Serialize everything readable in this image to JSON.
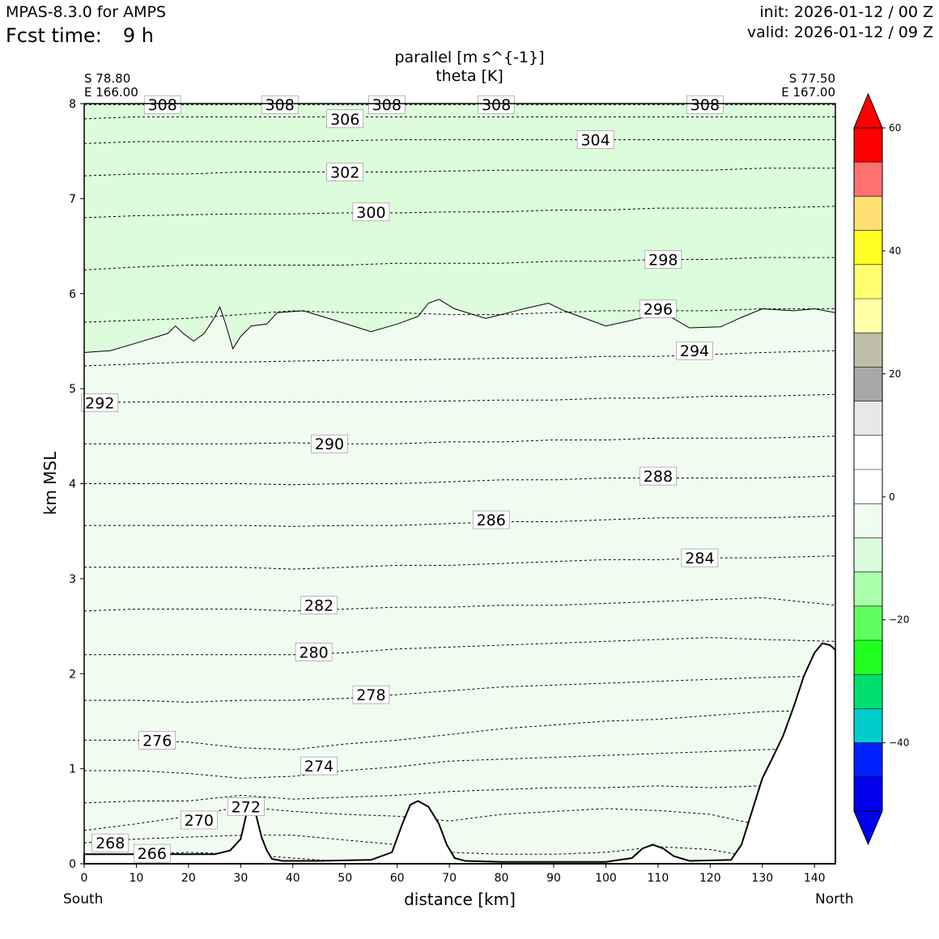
{
  "header": {
    "model": "MPAS-8.3.0 for AMPS",
    "fcst_label": "Fcst time:",
    "fcst_value": "9 h",
    "init": "init: 2026-01-12 / 00 Z",
    "valid": "valid: 2026-01-12 / 09 Z"
  },
  "plot": {
    "title_line1": "parallel [m s^{-1}]",
    "title_line2": "theta [K]",
    "left_lat": "S 78.80",
    "left_lon": "E 166.00",
    "right_lat": "S 77.50",
    "right_lon": "E 167.00",
    "south": "South",
    "north": "North"
  },
  "chart_data": {
    "type": "contour",
    "title": "parallel [m s^{-1}] / theta [K]",
    "xlabel": "distance [km]",
    "ylabel": "km MSL",
    "xlim": [
      0,
      144
    ],
    "ylim": [
      0,
      8
    ],
    "x_ticks": [
      0,
      10,
      20,
      30,
      40,
      50,
      60,
      70,
      80,
      90,
      100,
      110,
      120,
      130,
      140
    ],
    "y_ticks": [
      0,
      1,
      2,
      3,
      4,
      5,
      6,
      7,
      8
    ],
    "fill_field": {
      "name": "parallel wind",
      "units": "m s^{-1}",
      "boundary_between_shades_km": [
        [
          0,
          5.38
        ],
        [
          5,
          5.4
        ],
        [
          10,
          5.48
        ],
        [
          16,
          5.58
        ],
        [
          17.5,
          5.66
        ],
        [
          19,
          5.58
        ],
        [
          21,
          5.5
        ],
        [
          23,
          5.58
        ],
        [
          25,
          5.75
        ],
        [
          26,
          5.86
        ],
        [
          27,
          5.7
        ],
        [
          28.5,
          5.42
        ],
        [
          30,
          5.55
        ],
        [
          32,
          5.66
        ],
        [
          35,
          5.68
        ],
        [
          37,
          5.8
        ],
        [
          42,
          5.82
        ],
        [
          48,
          5.72
        ],
        [
          55,
          5.6
        ],
        [
          60,
          5.68
        ],
        [
          64,
          5.76
        ],
        [
          66,
          5.9
        ],
        [
          68,
          5.94
        ],
        [
          71,
          5.84
        ],
        [
          77,
          5.74
        ],
        [
          85,
          5.85
        ],
        [
          89,
          5.9
        ],
        [
          92,
          5.82
        ],
        [
          100,
          5.66
        ],
        [
          105,
          5.72
        ],
        [
          111,
          5.8
        ],
        [
          116,
          5.64
        ],
        [
          122,
          5.65
        ],
        [
          126,
          5.75
        ],
        [
          130,
          5.84
        ],
        [
          136,
          5.82
        ],
        [
          140,
          5.84
        ],
        [
          144,
          5.8
        ]
      ],
      "shade_above": "-15 to -10",
      "shade_below": "-10 to -5"
    },
    "theta_contours": [
      {
        "level": 266,
        "y": [
          0.08,
          0.1,
          0.12,
          0.1,
          0.06,
          0.02,
          0.02,
          0.02,
          0.02,
          0.02,
          0.02,
          0.02,
          0.02,
          0.02,
          0.02
        ],
        "label": [
          13,
          0.11
        ]
      },
      {
        "level": 268,
        "y": [
          0.22,
          0.26,
          0.28,
          0.3,
          0.3,
          0.25,
          0.2,
          0.12,
          0.1,
          0.1,
          0.12,
          0.18,
          0.15,
          0.05,
          0.05
        ],
        "label": [
          5,
          0.22
        ]
      },
      {
        "level": 270,
        "y": [
          0.35,
          0.42,
          0.5,
          0.6,
          0.55,
          0.52,
          0.5,
          0.45,
          0.52,
          0.55,
          0.58,
          0.56,
          0.52,
          0.4,
          0.38
        ],
        "label": [
          22,
          0.46
        ]
      },
      {
        "level": 272,
        "y": [
          0.64,
          0.66,
          0.66,
          0.72,
          0.68,
          0.7,
          0.72,
          0.76,
          0.78,
          0.8,
          0.8,
          0.82,
          0.8,
          0.82,
          0.82
        ],
        "label": [
          31,
          0.6
        ]
      },
      {
        "level": 274,
        "y": [
          0.98,
          0.98,
          0.95,
          0.9,
          0.92,
          0.98,
          1.02,
          1.08,
          1.1,
          1.12,
          1.14,
          1.16,
          1.18,
          1.2,
          1.22
        ],
        "label": [
          45,
          1.03
        ]
      },
      {
        "level": 276,
        "y": [
          1.3,
          1.3,
          1.28,
          1.22,
          1.2,
          1.26,
          1.3,
          1.36,
          1.42,
          1.46,
          1.5,
          1.52,
          1.56,
          1.6,
          1.62
        ],
        "label": [
          14,
          1.3
        ]
      },
      {
        "level": 278,
        "y": [
          1.72,
          1.72,
          1.7,
          1.72,
          1.72,
          1.74,
          1.78,
          1.82,
          1.86,
          1.88,
          1.9,
          1.92,
          1.94,
          1.96,
          1.98
        ],
        "label": [
          55,
          1.78
        ]
      },
      {
        "level": 280,
        "y": [
          2.2,
          2.2,
          2.2,
          2.2,
          2.2,
          2.22,
          2.26,
          2.28,
          2.3,
          2.32,
          2.34,
          2.36,
          2.38,
          2.36,
          2.34
        ],
        "label": [
          44,
          2.23
        ]
      },
      {
        "level": 282,
        "y": [
          2.66,
          2.68,
          2.68,
          2.68,
          2.66,
          2.68,
          2.7,
          2.7,
          2.72,
          2.72,
          2.74,
          2.76,
          2.78,
          2.8,
          2.72
        ],
        "label": [
          45,
          2.72
        ]
      },
      {
        "level": 284,
        "y": [
          3.12,
          3.12,
          3.12,
          3.12,
          3.1,
          3.12,
          3.14,
          3.14,
          3.16,
          3.18,
          3.2,
          3.2,
          3.22,
          3.22,
          3.24
        ],
        "label": [
          118,
          3.22
        ]
      },
      {
        "level": 286,
        "y": [
          3.56,
          3.56,
          3.56,
          3.56,
          3.55,
          3.56,
          3.56,
          3.58,
          3.6,
          3.6,
          3.62,
          3.64,
          3.64,
          3.64,
          3.66
        ],
        "label": [
          78,
          3.62
        ]
      },
      {
        "level": 288,
        "y": [
          4.0,
          4.0,
          4.0,
          4.0,
          3.99,
          4.0,
          4.0,
          4.02,
          4.04,
          4.04,
          4.06,
          4.06,
          4.06,
          4.06,
          4.08
        ],
        "label": [
          110,
          4.08
        ]
      },
      {
        "level": 290,
        "y": [
          4.42,
          4.42,
          4.42,
          4.42,
          4.43,
          4.42,
          4.42,
          4.44,
          4.44,
          4.46,
          4.46,
          4.48,
          4.48,
          4.48,
          4.5
        ],
        "label": [
          47,
          4.42
        ]
      },
      {
        "level": 292,
        "y": [
          4.85,
          4.86,
          4.86,
          4.86,
          4.86,
          4.86,
          4.86,
          4.87,
          4.88,
          4.88,
          4.9,
          4.9,
          4.92,
          4.92,
          4.94
        ],
        "label": [
          3,
          4.85
        ]
      },
      {
        "level": 294,
        "y": [
          5.24,
          5.26,
          5.28,
          5.28,
          5.29,
          5.3,
          5.3,
          5.31,
          5.32,
          5.32,
          5.34,
          5.34,
          5.36,
          5.38,
          5.4
        ],
        "label": [
          117,
          5.4
        ]
      },
      {
        "level": 296,
        "y": [
          5.7,
          5.72,
          5.74,
          5.78,
          5.82,
          5.8,
          5.8,
          5.78,
          5.78,
          5.8,
          5.82,
          5.82,
          5.82,
          5.84,
          5.84
        ],
        "label": [
          110,
          5.84
        ]
      },
      {
        "level": 298,
        "y": [
          6.25,
          6.28,
          6.3,
          6.3,
          6.3,
          6.3,
          6.32,
          6.32,
          6.32,
          6.34,
          6.34,
          6.36,
          6.36,
          6.38,
          6.38
        ],
        "label": [
          111,
          6.36
        ]
      },
      {
        "level": 300,
        "y": [
          6.8,
          6.82,
          6.83,
          6.84,
          6.84,
          6.85,
          6.85,
          6.86,
          6.86,
          6.88,
          6.88,
          6.9,
          6.9,
          6.9,
          6.92
        ],
        "label": [
          55,
          6.86
        ]
      },
      {
        "level": 302,
        "y": [
          7.24,
          7.26,
          7.26,
          7.28,
          7.28,
          7.28,
          7.28,
          7.29,
          7.3,
          7.3,
          7.3,
          7.3,
          7.3,
          7.32,
          7.32
        ],
        "label": [
          50,
          7.28
        ]
      },
      {
        "level": 304,
        "y": [
          7.58,
          7.6,
          7.6,
          7.6,
          7.6,
          7.61,
          7.62,
          7.62,
          7.62,
          7.62,
          7.62,
          7.62,
          7.62,
          7.62,
          7.62
        ],
        "label": [
          98,
          7.62
        ]
      },
      {
        "level": 306,
        "y": [
          7.84,
          7.86,
          7.86,
          7.86,
          7.86,
          7.86,
          7.86,
          7.86,
          7.86,
          7.86,
          7.86,
          7.86,
          7.86,
          7.86,
          7.86
        ],
        "label": [
          50,
          7.84
        ]
      },
      {
        "level": 308,
        "y": [
          7.99,
          7.99,
          7.99,
          7.99,
          7.99,
          7.99,
          7.99,
          7.99,
          7.99,
          7.99,
          7.99,
          7.99,
          7.99,
          7.99,
          7.99
        ],
        "label": [
          15,
          7.99
        ],
        "extra_labels": [
          [
            37.5,
            7.99
          ],
          [
            58,
            7.99
          ],
          [
            79,
            7.99
          ],
          [
            119,
            7.99
          ]
        ]
      }
    ],
    "terrain_km": [
      [
        0,
        0.1
      ],
      [
        10,
        0.1
      ],
      [
        20,
        0.1
      ],
      [
        25,
        0.1
      ],
      [
        28,
        0.14
      ],
      [
        30,
        0.26
      ],
      [
        31,
        0.5
      ],
      [
        32,
        0.62
      ],
      [
        33,
        0.5
      ],
      [
        34,
        0.28
      ],
      [
        35,
        0.14
      ],
      [
        36,
        0.05
      ],
      [
        38,
        0.03
      ],
      [
        45,
        0.03
      ],
      [
        55,
        0.04
      ],
      [
        59,
        0.12
      ],
      [
        61,
        0.42
      ],
      [
        62.5,
        0.62
      ],
      [
        64,
        0.66
      ],
      [
        66,
        0.6
      ],
      [
        68,
        0.42
      ],
      [
        69.5,
        0.2
      ],
      [
        71,
        0.06
      ],
      [
        73,
        0.03
      ],
      [
        80,
        0.02
      ],
      [
        90,
        0.02
      ],
      [
        100,
        0.02
      ],
      [
        105,
        0.06
      ],
      [
        107,
        0.16
      ],
      [
        109,
        0.2
      ],
      [
        111,
        0.16
      ],
      [
        113,
        0.08
      ],
      [
        116,
        0.03
      ],
      [
        124,
        0.04
      ],
      [
        126,
        0.2
      ],
      [
        128,
        0.55
      ],
      [
        130,
        0.9
      ],
      [
        132,
        1.12
      ],
      [
        134,
        1.35
      ],
      [
        136,
        1.65
      ],
      [
        138,
        1.98
      ],
      [
        140,
        2.22
      ],
      [
        141.5,
        2.32
      ],
      [
        143,
        2.3
      ],
      [
        144,
        2.25
      ]
    ],
    "colorbar": {
      "ticks": [
        60,
        40,
        20,
        0,
        -20,
        -40
      ],
      "colors_top_to_bottom": [
        "#ff0000",
        "#ff7070",
        "#ffe070",
        "#ffff22",
        "#ffff70",
        "#ffffa8",
        "#bebea8",
        "#a8a8a8",
        "#e8e8e8",
        "#ffffff",
        "#ffffff",
        "#f0fcf0",
        "#dcfcdc",
        "#aaffaa",
        "#60ff60",
        "#20ff20",
        "#00e070",
        "#00cccc",
        "#0022ff",
        "#0000ee"
      ],
      "extend_top": "#ff0000",
      "extend_bottom": "#0000ee"
    }
  }
}
